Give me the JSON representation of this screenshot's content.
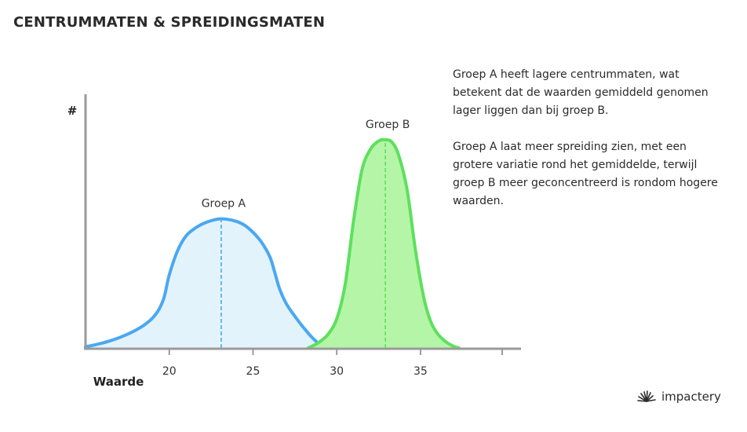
{
  "title": "CENTRUMMATEN & SPREIDINGSMATEN",
  "explanation": [
    "Groep A heeft lagere centrummaten, wat betekent dat de waarden gemiddeld genomen lager liggen dan bij groep B.",
    "Groep A laat meer spreiding zien, met een grotere variatie rond het gemiddelde, terwijl groep B meer geconcentreerd is rondom hogere waarden."
  ],
  "logo": {
    "text": "impactery",
    "icon": "sunburst-icon"
  },
  "chart_data": {
    "type": "area",
    "xlabel": "Waarde",
    "ylabel": "#",
    "xticks": [
      20,
      25,
      30,
      35
    ],
    "xlim": [
      15,
      41
    ],
    "grid": false,
    "series": [
      {
        "name": "Groep A",
        "mean": 23.1,
        "color": "#4aa8f0",
        "fill": "#e3f3fc",
        "x": [
          15.0,
          15.5,
          16.0,
          16.5,
          17.0,
          17.5,
          18.0,
          18.5,
          19.0,
          19.4,
          19.7,
          20.0,
          20.5,
          21.0,
          21.5,
          22.0,
          22.5,
          23.0,
          23.5,
          24.0,
          24.5,
          25.0,
          25.5,
          26.0,
          26.3,
          26.6,
          27.0,
          27.5,
          28.0,
          28.5,
          29.0,
          29.5
        ],
        "y": [
          0.5,
          1.2,
          2.0,
          3.0,
          4.2,
          5.6,
          7.3,
          9.4,
          12.3,
          16.0,
          21.0,
          30.0,
          40.0,
          46.0,
          49.0,
          51.0,
          52.3,
          53.0,
          52.8,
          52.0,
          50.4,
          47.5,
          43.5,
          37.5,
          31.0,
          24.0,
          18.0,
          13.0,
          8.5,
          4.5,
          1.5,
          0.0
        ]
      },
      {
        "name": "Groep B",
        "mean": 32.9,
        "color": "#5ee05e",
        "fill": "#b5f5a8",
        "x": [
          28.3,
          28.6,
          29.0,
          29.5,
          30.0,
          30.5,
          31.0,
          31.5,
          32.0,
          32.5,
          32.9,
          33.3,
          33.7,
          34.2,
          34.7,
          35.2,
          35.6,
          36.0,
          36.5,
          37.0,
          37.3
        ],
        "y": [
          0.0,
          1.0,
          2.6,
          5.8,
          12.0,
          26.0,
          52.0,
          73.0,
          81.5,
          85.0,
          85.5,
          84.5,
          79.0,
          65.0,
          40.0,
          20.5,
          11.0,
          6.0,
          2.6,
          0.6,
          0.0
        ]
      }
    ]
  }
}
